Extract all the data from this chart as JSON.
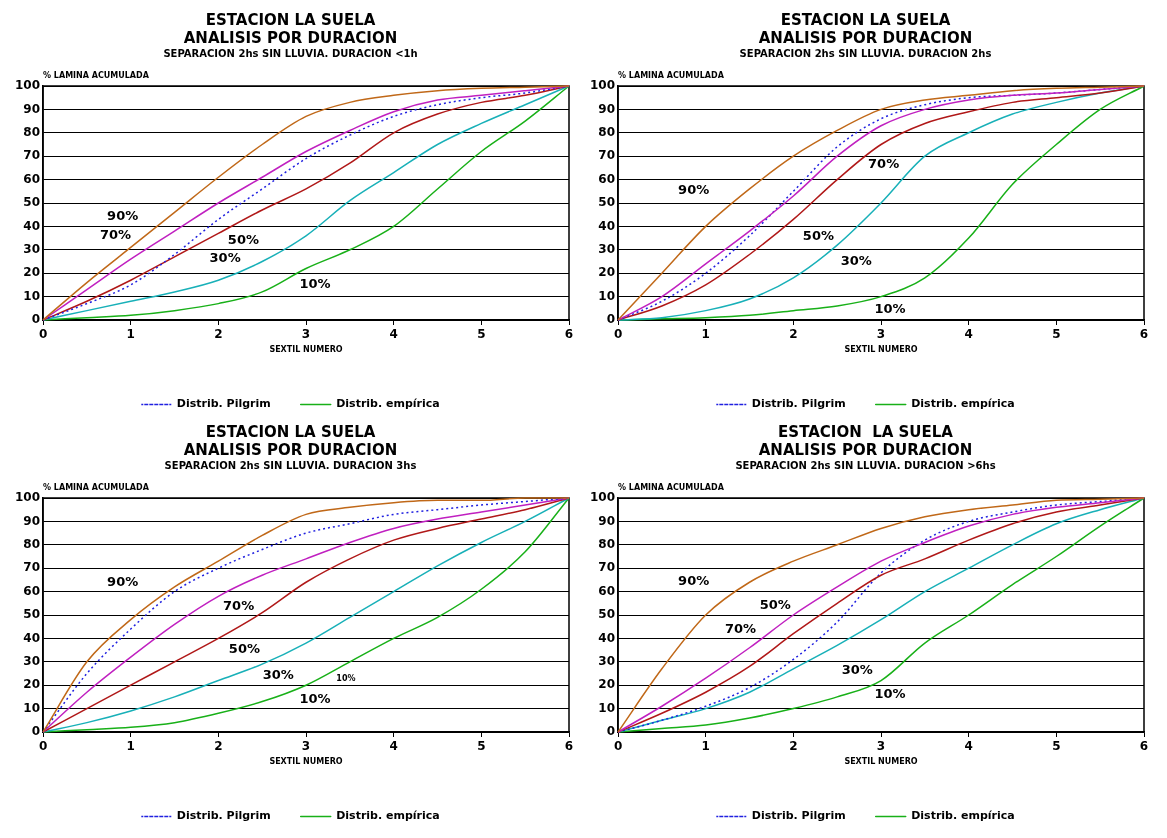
{
  "chart_data": [
    {
      "type": "line",
      "title": "ESTACION LA SUELA\nANALISIS POR DURACION",
      "subtitle": "SEPARACION 2hs SIN LLUVIA. DURACION <1h",
      "xlabel": "SEXTIL NUMERO",
      "ylabel": "% LAMINA ACUMULADA",
      "x": [
        0,
        0.5,
        1,
        1.5,
        2,
        2.5,
        3,
        3.5,
        4,
        4.5,
        5,
        5.5,
        6
      ],
      "xlim": [
        0,
        6
      ],
      "xticks": [
        0,
        1,
        2,
        3,
        4,
        5,
        6
      ],
      "ylim": [
        0,
        100
      ],
      "yticks": [
        0,
        10,
        20,
        30,
        40,
        50,
        60,
        70,
        80,
        90,
        100
      ],
      "grid": "y",
      "legend": "bottom",
      "marker": "none",
      "series": [
        {
          "color": "#c06818",
          "values": [
            0,
            16,
            31,
            46,
            61,
            75,
            87,
            93,
            96,
            98,
            99,
            99.5,
            100
          ]
        },
        {
          "color": "#c020c0",
          "values": [
            0,
            13,
            26,
            38,
            50,
            61,
            72,
            81,
            89,
            94,
            96,
            98,
            100
          ]
        },
        {
          "name": "Distrib. Pilgrim",
          "color": "#2020e0",
          "line_style": "dotted",
          "values": [
            0,
            7,
            15,
            28,
            43,
            56,
            69,
            79,
            87,
            92,
            95,
            97,
            100
          ]
        },
        {
          "color": "#b01818",
          "values": [
            0,
            8,
            17,
            27,
            37,
            47,
            56,
            67,
            80,
            88,
            93,
            96,
            100
          ]
        },
        {
          "color": "#18b0b8",
          "values": [
            0,
            4,
            8,
            12,
            17,
            25,
            36,
            51,
            63,
            75,
            84,
            92,
            100
          ]
        },
        {
          "name": "Distrib. empírica",
          "color": "#18b018",
          "values": [
            0,
            1,
            2,
            4,
            7,
            12,
            22,
            30,
            40,
            56,
            72,
            85,
            100
          ]
        }
      ],
      "annotations": [
        "90%",
        "70%",
        "50%",
        "30%",
        "10%"
      ]
    },
    {
      "type": "line",
      "title": "ESTACION LA SUELA\nANALISIS POR DURACION",
      "subtitle": "SEPARACION 2hs SIN LLUVIA. DURACION 2hs",
      "xlabel": "SEXTIL NUMERO",
      "ylabel": "% LAMINA ACUMULADA",
      "x": [
        0,
        0.5,
        1,
        1.5,
        2,
        2.5,
        3,
        3.5,
        4,
        4.5,
        5,
        5.5,
        6
      ],
      "xlim": [
        0,
        6
      ],
      "xticks": [
        0,
        1,
        2,
        3,
        4,
        5,
        6
      ],
      "ylim": [
        0,
        100
      ],
      "yticks": [
        0,
        10,
        20,
        30,
        40,
        50,
        60,
        70,
        80,
        90,
        100
      ],
      "grid": "y",
      "legend": "bottom",
      "marker": "none",
      "series": [
        {
          "color": "#c06818",
          "values": [
            0,
            20,
            40,
            56,
            70,
            81,
            90,
            94,
            96,
            98,
            99,
            99.5,
            100
          ]
        },
        {
          "color": "#c020c0",
          "values": [
            0,
            10,
            24,
            38,
            53,
            70,
            83,
            90,
            94,
            96,
            97,
            98.5,
            100
          ]
        },
        {
          "name": "Distrib. Pilgrim",
          "color": "#2020e0",
          "line_style": "dotted",
          "values": [
            0,
            8,
            20,
            36,
            55,
            74,
            86,
            92,
            95,
            96,
            97,
            98.5,
            100
          ]
        },
        {
          "color": "#b01818",
          "values": [
            0,
            6,
            15,
            28,
            43,
            60,
            75,
            84,
            89,
            93,
            95,
            97,
            100
          ]
        },
        {
          "color": "#18b0b8",
          "values": [
            0,
            1,
            4,
            9,
            18,
            32,
            50,
            70,
            80,
            88,
            93,
            97,
            100
          ]
        },
        {
          "name": "Distrib. empírica",
          "color": "#18b018",
          "values": [
            0,
            0.5,
            1,
            2,
            4,
            6,
            10,
            18,
            35,
            58,
            75,
            90,
            100
          ]
        }
      ],
      "annotations": [
        "90%",
        "70%",
        "50%",
        "30%",
        "10%"
      ]
    },
    {
      "type": "line",
      "title": "ESTACION LA SUELA\nANALISIS POR DURACION",
      "subtitle": "SEPARACION 2hs SIN LLUVIA. DURACION 3hs",
      "xlabel": "SEXTIL NUMERO",
      "ylabel": "% LAMINA ACUMULADA",
      "x": [
        0,
        0.5,
        1,
        1.5,
        2,
        2.5,
        3,
        3.5,
        4,
        4.5,
        5,
        5.5,
        6
      ],
      "xlim": [
        0,
        6
      ],
      "xticks": [
        0,
        1,
        2,
        3,
        4,
        5,
        6
      ],
      "ylim": [
        0,
        100
      ],
      "yticks": [
        0,
        10,
        20,
        30,
        40,
        50,
        60,
        70,
        80,
        90,
        100
      ],
      "grid": "y",
      "legend": "bottom",
      "marker": "none",
      "series": [
        {
          "color": "#c06818",
          "values": [
            0,
            30,
            48,
            62,
            73,
            84,
            93,
            96,
            98,
            99,
            99,
            100,
            100
          ]
        },
        {
          "name": "Distrib. Pilgrim",
          "color": "#2020e0",
          "line_style": "dotted",
          "values": [
            0,
            25,
            44,
            60,
            70,
            78,
            85,
            89,
            93,
            95,
            97,
            98.5,
            100
          ]
        },
        {
          "color": "#c020c0",
          "values": [
            0,
            17,
            32,
            46,
            58,
            67,
            74,
            81,
            87,
            91,
            94,
            97,
            100
          ]
        },
        {
          "color": "#b01818",
          "values": [
            0,
            10,
            20,
            30,
            40,
            51,
            64,
            74,
            82,
            87,
            91,
            95,
            100
          ]
        },
        {
          "color": "#18b0b8",
          "values": [
            0,
            4,
            9,
            15,
            22,
            29,
            38,
            49,
            60,
            71,
            81,
            90,
            100
          ]
        },
        {
          "name": "Distrib. empírica",
          "color": "#18b018",
          "values": [
            0,
            1,
            2,
            4,
            8,
            13,
            20,
            30,
            40,
            49,
            61,
            77,
            100
          ]
        }
      ],
      "annotations": [
        "90%",
        "70%",
        "50%",
        "30%",
        "10%",
        "10%"
      ]
    },
    {
      "type": "line",
      "title": "ESTACION  LA SUELA\nANALISIS POR DURACION",
      "subtitle": "SEPARACION 2hs SIN LLUVIA. DURACION >6hs",
      "xlabel": "SEXTIL NUMERO",
      "ylabel": "% LAMINA ACUMULADA",
      "x": [
        0,
        0.5,
        1,
        1.5,
        2,
        2.5,
        3,
        3.5,
        4,
        4.5,
        5,
        5.5,
        6
      ],
      "xlim": [
        0,
        6
      ],
      "xticks": [
        0,
        1,
        2,
        3,
        4,
        5,
        6
      ],
      "ylim": [
        0,
        100
      ],
      "yticks": [
        0,
        10,
        20,
        30,
        40,
        50,
        60,
        70,
        80,
        90,
        100
      ],
      "grid": "y",
      "legend": "bottom",
      "marker": "none",
      "series": [
        {
          "color": "#c06818",
          "values": [
            0,
            27,
            50,
            64,
            73,
            80,
            87,
            92,
            95,
            97,
            99,
            99.5,
            100
          ]
        },
        {
          "color": "#c020c0",
          "values": [
            0,
            11,
            23,
            36,
            50,
            62,
            73,
            81,
            88,
            93,
            96,
            98,
            100
          ]
        },
        {
          "color": "#b01818",
          "values": [
            0,
            8,
            17,
            28,
            42,
            55,
            67,
            74,
            82,
            89,
            94,
            97,
            100
          ]
        },
        {
          "name": "Distrib. Pilgrim",
          "color": "#2020e0",
          "line_style": "dotted",
          "values": [
            0,
            5,
            11,
            19,
            31,
            47,
            68,
            82,
            90,
            94,
            97,
            98.5,
            100
          ]
        },
        {
          "color": "#18b0b8",
          "values": [
            0,
            5,
            10,
            17,
            27,
            37,
            48,
            60,
            70,
            80,
            89,
            95,
            100
          ]
        },
        {
          "name": "Distrib. empírica",
          "color": "#18b018",
          "values": [
            0,
            1.5,
            3,
            6,
            10,
            15,
            22,
            38,
            50,
            63,
            75,
            88,
            100
          ]
        }
      ],
      "annotations": [
        "90%",
        "70%",
        "50%",
        "30%",
        "10%"
      ]
    }
  ]
}
